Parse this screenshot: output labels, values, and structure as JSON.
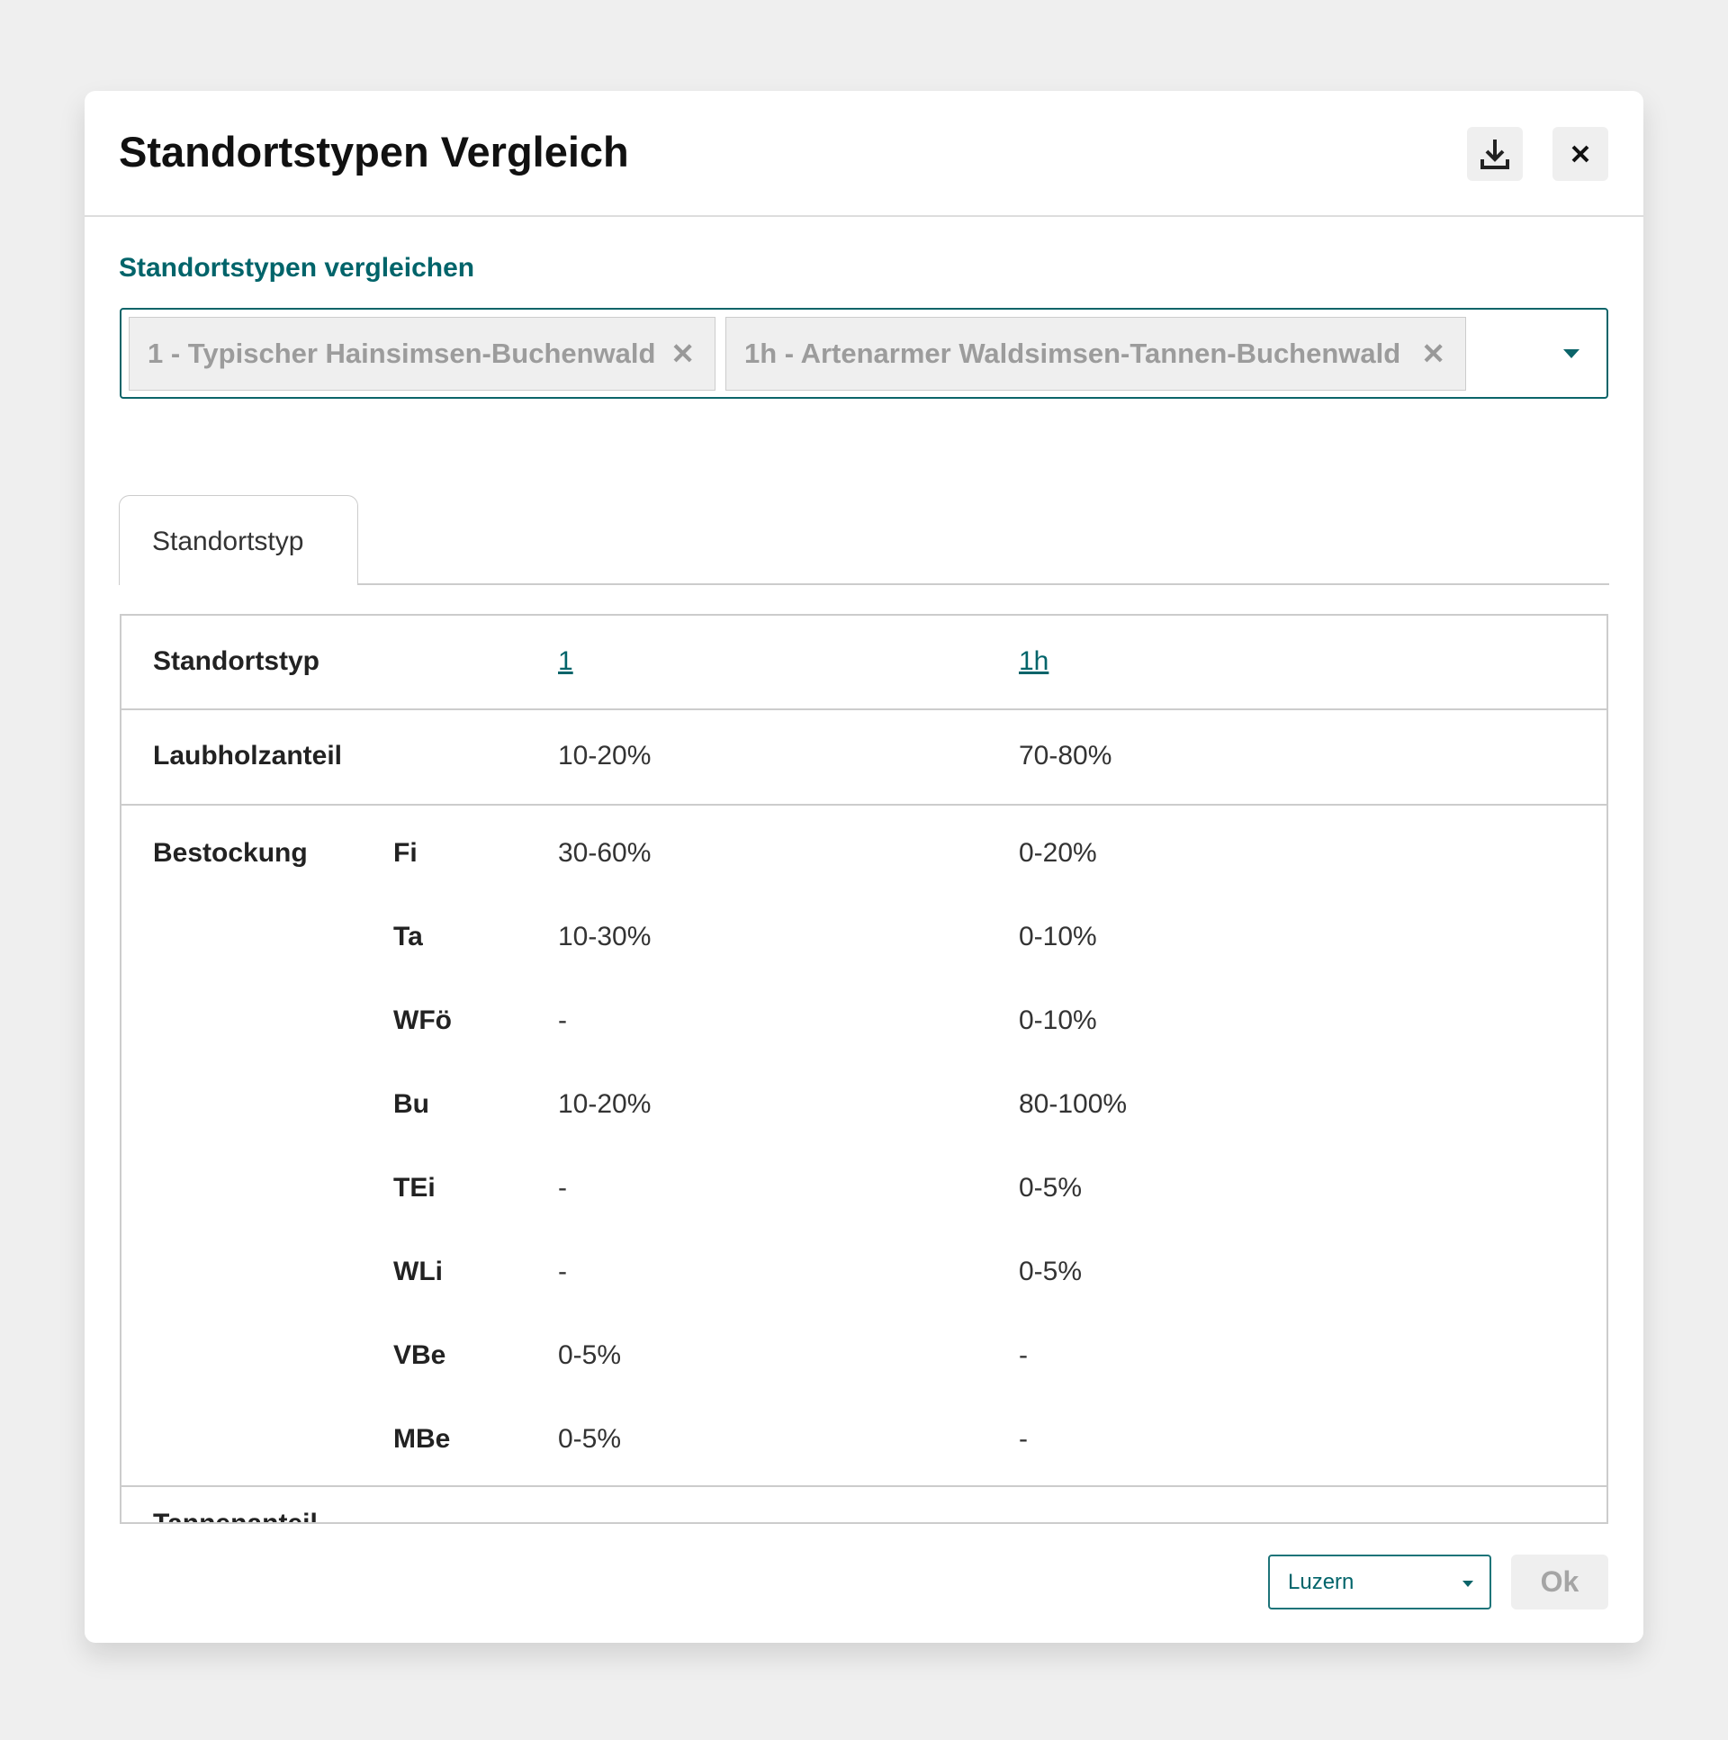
{
  "dialog": {
    "title": "Standortstypen Vergleich",
    "download_icon": "download-icon",
    "close_icon": "close-icon"
  },
  "compare": {
    "label": "Standortstypen vergleichen",
    "chips": [
      {
        "label": "1 - Typischer Hainsimsen-Buchenwald"
      },
      {
        "label": "1h - Artenarmer Waldsimsen-Tannen-Buchenwald"
      }
    ],
    "remove_glyph": "✕"
  },
  "tabs": [
    {
      "label": "Standortstyp",
      "active": true
    }
  ],
  "table": {
    "header": {
      "label": "Standortstyp",
      "col1": "1",
      "col2": "1h"
    },
    "laubholz": {
      "label": "Laubholzanteil",
      "col1": "10-20%",
      "col2": "70-80%"
    },
    "bestockung": {
      "label": "Bestockung",
      "rows": [
        {
          "species": "Fi",
          "col1": "30-60%",
          "col2": "0-20%"
        },
        {
          "species": "Ta",
          "col1": "10-30%",
          "col2": "0-10%"
        },
        {
          "species": "WFö",
          "col1": "-",
          "col2": "0-10%"
        },
        {
          "species": "Bu",
          "col1": "10-20%",
          "col2": "80-100%"
        },
        {
          "species": "TEi",
          "col1": "-",
          "col2": "0-5%"
        },
        {
          "species": "WLi",
          "col1": "-",
          "col2": "0-5%"
        },
        {
          "species": "VBe",
          "col1": "0-5%",
          "col2": "-"
        },
        {
          "species": "MBe",
          "col1": "0-5%",
          "col2": "-"
        }
      ]
    },
    "next_row_label": "Tannenanteil"
  },
  "footer": {
    "region": "Luzern",
    "ok_label": "Ok"
  },
  "colors": {
    "accent": "#00646a",
    "background": "#efefef"
  }
}
